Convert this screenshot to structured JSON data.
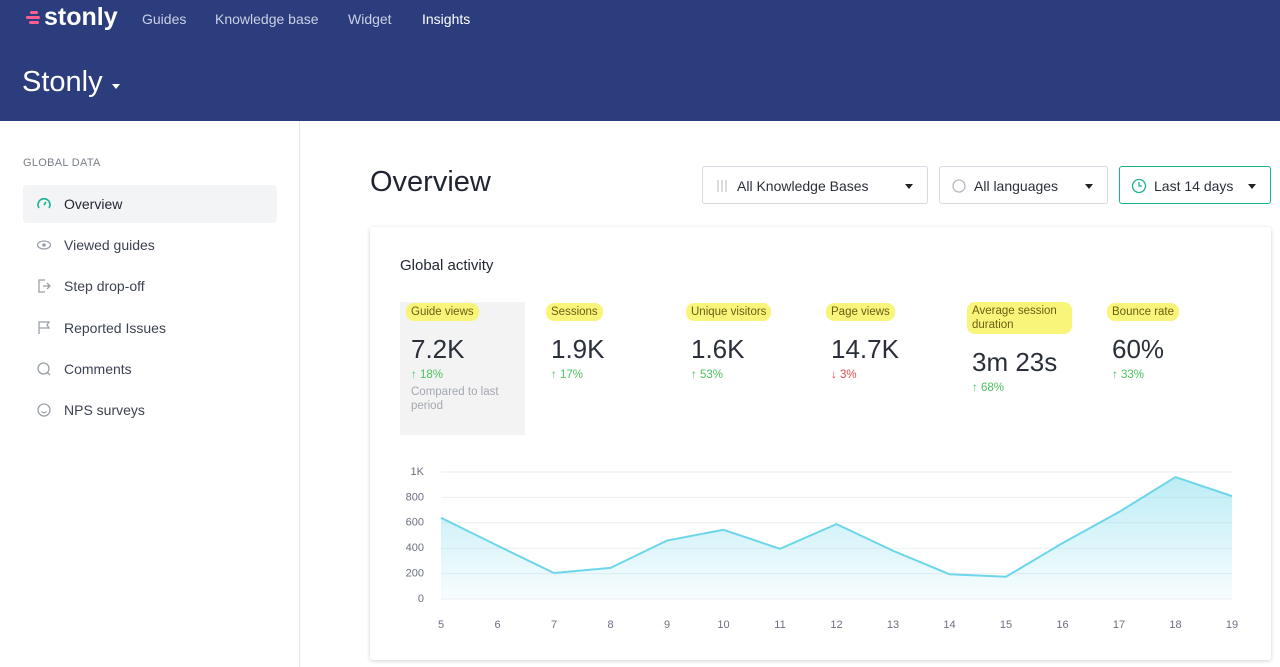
{
  "header": {
    "logo": "stonly",
    "nav": [
      "Guides",
      "Knowledge base",
      "Widget",
      "Insights"
    ],
    "workspace": "Stonly"
  },
  "sidebar": {
    "section": "GLOBAL DATA",
    "items": [
      "Overview",
      "Viewed guides",
      "Step drop-off",
      "Reported Issues",
      "Comments",
      "NPS surveys"
    ]
  },
  "page": {
    "title": "Overview",
    "filters": [
      "All Knowledge Bases",
      "All languages",
      "Last 14 days"
    ]
  },
  "card": {
    "title": "Global activity",
    "note": "Compared to last period",
    "metrics": [
      {
        "label": "Guide views",
        "value": "7.2K",
        "change": "↑ 18%",
        "color": "#4cc25f"
      },
      {
        "label": "Sessions",
        "value": "1.9K",
        "change": "↑ 17%",
        "color": "#4cc25f"
      },
      {
        "label": "Unique visitors",
        "value": "1.6K",
        "change": "↑ 53%",
        "color": "#4cc25f"
      },
      {
        "label": "Page views",
        "value": "14.7K",
        "change": "↓ 3%",
        "color": "#e5484d"
      },
      {
        "label": "Average session duration",
        "value": "3m 23s",
        "change": "↑ 68%",
        "color": "#4cc25f"
      },
      {
        "label": "Bounce rate",
        "value": "60%",
        "change": "↑ 33%",
        "color": "#4cc25f"
      }
    ]
  },
  "chart_data": {
    "type": "area",
    "categories": [
      "5",
      "6",
      "7",
      "8",
      "9",
      "10",
      "11",
      "12",
      "13",
      "14",
      "15",
      "16",
      "17",
      "18",
      "19"
    ],
    "values": [
      640,
      420,
      205,
      245,
      460,
      545,
      395,
      590,
      380,
      195,
      175,
      440,
      685,
      960,
      810
    ],
    "color": "#6dd6ea",
    "ylim": [
      0,
      1000
    ],
    "yticks": [
      0,
      200,
      400,
      600,
      800,
      {
        "value": 1000,
        "label": "1K"
      }
    ],
    "grid": true
  }
}
